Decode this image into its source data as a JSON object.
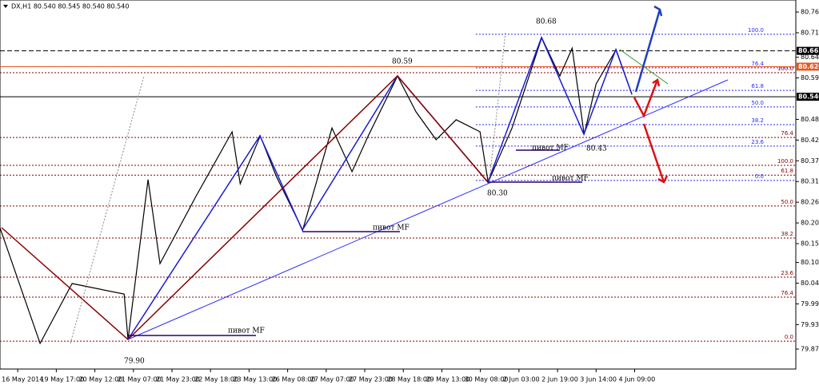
{
  "chart_data": {
    "type": "line",
    "title": "DX,H1 80.540 80.545 80.540 80.540",
    "categories": [
      "16 May 2014",
      "19 May 17:00",
      "20 May 12:00",
      "21 May 07:00",
      "21 May 23:00",
      "22 May 18:00",
      "23 May 13:00",
      "26 May 08:00",
      "27 May 07:00",
      "27 May 23:00",
      "28 May 18:00",
      "29 May 13:00",
      "30 May 08:00",
      "2 Jun 03:00",
      "2 Jun 19:00",
      "3 Jun 14:00",
      "4 Jun 09:00"
    ],
    "series": [
      {
        "name": "DX,H1",
        "color": "#000000",
        "x": [
          -0.46,
          0.58,
          1.41,
          2.76,
          2.86,
          3.38,
          3.69,
          4.63,
          5.56,
          5.77,
          6.29,
          6.7,
          7.39,
          8.15,
          8.67,
          9.09,
          9.85,
          10.33,
          10.85,
          11.37,
          11.99,
          12.2,
          12.82,
          13.59,
          14.06,
          14.38,
          14.69,
          15.0,
          15.52,
          15.93
        ],
        "values": [
          80.192,
          79.885,
          80.044,
          80.016,
          79.895,
          80.32,
          80.097,
          80.277,
          80.447,
          80.309,
          80.436,
          80.33,
          80.186,
          80.457,
          80.341,
          80.436,
          80.595,
          80.5,
          80.426,
          80.479,
          80.447,
          80.313,
          80.457,
          80.697,
          80.595,
          80.669,
          80.44,
          80.574,
          80.665,
          80.546
        ]
      }
    ],
    "xlim": [
      -0.46,
      20.18
    ],
    "ylim": [
      79.817,
      80.797
    ],
    "yticks": [
      {
        "value": 80.765,
        "label": "80.765"
      },
      {
        "value": 80.71,
        "label": "80.710"
      },
      {
        "value": 80.645,
        "label": "80.645"
      },
      {
        "value": 80.59,
        "label": "80.590"
      },
      {
        "value": 80.48,
        "label": "80.480"
      },
      {
        "value": 80.425,
        "label": "80.425"
      },
      {
        "value": 80.37,
        "label": "80.370"
      },
      {
        "value": 80.315,
        "label": "80.315"
      },
      {
        "value": 80.26,
        "label": "80.260"
      },
      {
        "value": 80.205,
        "label": "80.205"
      },
      {
        "value": 80.15,
        "label": "80.150"
      },
      {
        "value": 80.1,
        "label": "80.100"
      },
      {
        "value": 80.045,
        "label": "80.045"
      },
      {
        "value": 79.99,
        "label": "79.990"
      },
      {
        "value": 79.935,
        "label": "79.935"
      },
      {
        "value": 79.87,
        "label": "79.870"
      }
    ],
    "price_markers": [
      {
        "value": 80.662,
        "label": "80.662",
        "color": "#000000"
      },
      {
        "value": 80.62,
        "label": "80.620",
        "color": "#e8561e"
      },
      {
        "value": 80.54,
        "label": "80.540",
        "color": "#000000"
      }
    ],
    "fib_blue": [
      {
        "label": "100.0",
        "price": 80.706
      },
      {
        "label": "76.4",
        "price": 80.617
      },
      {
        "label": "61.8",
        "price": 80.557
      },
      {
        "label": "50.0",
        "price": 80.513
      },
      {
        "label": "38.2",
        "price": 80.466
      },
      {
        "label": "23.6",
        "price": 80.409
      },
      {
        "label": "0.0",
        "price": 80.318
      }
    ],
    "fib_red": [
      {
        "label": "100.0",
        "price": 80.604
      },
      {
        "label": "76.4",
        "price": 80.432
      },
      {
        "label": "100.0",
        "price": 80.358
      },
      {
        "label": "61.8",
        "price": 80.332
      },
      {
        "label": "50.0",
        "price": 80.25
      },
      {
        "label": "38.2",
        "price": 80.165
      },
      {
        "label": "23.6",
        "price": 80.061
      },
      {
        "label": "76.4",
        "price": 80.008
      },
      {
        "label": "0.0",
        "price": 79.891
      }
    ],
    "annotations": [
      "80.68",
      "80.59",
      "80.43",
      "80.30",
      "79.90",
      "пивот MF",
      "пивот MF",
      "пивот MF",
      "пивот MF"
    ]
  }
}
